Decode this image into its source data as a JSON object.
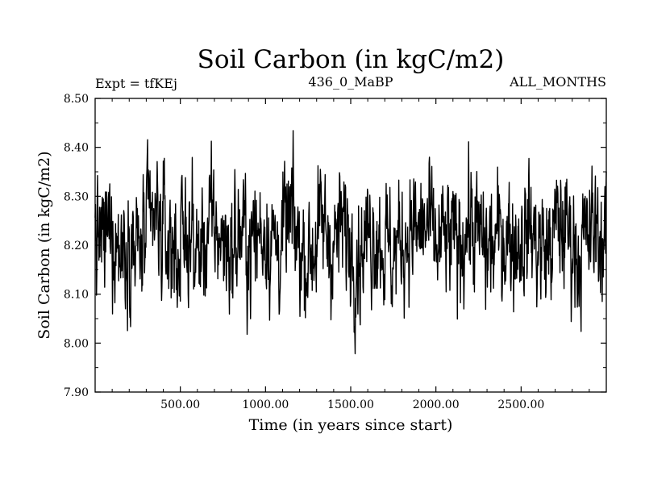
{
  "chart_data": {
    "type": "line",
    "title": "Soil Carbon (in kgC/m2)",
    "subtitle_left": "Expt = tfKEj",
    "subtitle_center": "436_0_MaBP",
    "subtitle_right": "ALL_MONTHS",
    "xlabel": "Time (in years since start)",
    "ylabel": "Soil Carbon (in kgC/m2)",
    "xlim": [
      0,
      3000
    ],
    "ylim": [
      7.9,
      8.5
    ],
    "x_ticks": [
      500,
      1000,
      1500,
      2000,
      2500
    ],
    "x_tick_labels": [
      "500.00",
      "1000.00",
      "1500.00",
      "2000.00",
      "2500.00"
    ],
    "y_ticks": [
      7.9,
      8.0,
      8.1,
      8.2,
      8.3,
      8.4,
      8.5
    ],
    "y_tick_labels": [
      "7.90",
      "8.00",
      "8.10",
      "8.20",
      "8.30",
      "8.40",
      "8.50"
    ],
    "grid": false,
    "line_color": "#000000",
    "series": [
      {
        "x": [
          0,
          50,
          100,
          150,
          200,
          250,
          300,
          350,
          400,
          450,
          500,
          550,
          600,
          650,
          700,
          750,
          800,
          850,
          900,
          950,
          1000,
          1050,
          1100,
          1150,
          1200,
          1250,
          1300,
          1350,
          1400,
          1450,
          1500,
          1550,
          1600,
          1650,
          1700,
          1750,
          1800,
          1850,
          1900,
          1950,
          2000,
          2050,
          2100,
          2150,
          2200,
          2250,
          2300,
          2350,
          2400,
          2450,
          2500,
          2550,
          2600,
          2650,
          2700,
          2750,
          2800,
          2850,
          2900,
          2950,
          3000
        ],
        "y": [
          8.22,
          8.2,
          8.24,
          8.19,
          8.23,
          8.18,
          8.21,
          8.25,
          8.22,
          8.2,
          8.19,
          8.23,
          8.17,
          8.22,
          8.24,
          8.21,
          8.19,
          8.23,
          8.2,
          8.22,
          8.24,
          8.2,
          8.21,
          8.25,
          8.19,
          8.18,
          8.22,
          8.23,
          8.2,
          8.24,
          8.21,
          8.19,
          8.22,
          8.24,
          8.2,
          8.18,
          8.21,
          8.23,
          8.22,
          8.24,
          8.19,
          8.21,
          8.2,
          8.22,
          8.25,
          8.21,
          8.19,
          8.2,
          8.23,
          8.21,
          8.22,
          8.24,
          8.2,
          8.18,
          8.23,
          8.24,
          8.21,
          8.19,
          8.22,
          8.23,
          8.2
        ]
      }
    ]
  }
}
